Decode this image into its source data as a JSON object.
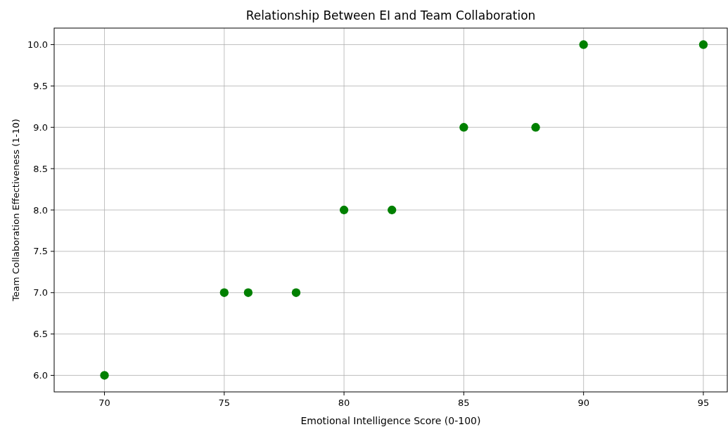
{
  "chart_data": {
    "type": "scatter",
    "title": "Relationship Between EI and Team Collaboration",
    "xlabel": "Emotional Intelligence Score (0-100)",
    "ylabel": "Team Collaboration Effectiveness (1-10)",
    "x": [
      70,
      75,
      76,
      78,
      80,
      82,
      85,
      88,
      90,
      95
    ],
    "series": [
      {
        "color": "#008000",
        "values": [
          6,
          7,
          7,
          7,
          8,
          8,
          9,
          9,
          10,
          10
        ]
      }
    ],
    "xlim": [
      67.9,
      96.0
    ],
    "ylim": [
      5.8,
      10.2
    ],
    "xticks": [
      70,
      75,
      80,
      85,
      90,
      95
    ],
    "yticks": [
      {
        "value": 6,
        "label": "6.0"
      },
      {
        "value": 6.5,
        "label": "6.5"
      },
      {
        "value": 7,
        "label": "7.0"
      },
      {
        "value": 7.5,
        "label": "7.5"
      },
      {
        "value": 8,
        "label": "8.0"
      },
      {
        "value": 8.5,
        "label": "8.5"
      },
      {
        "value": 9,
        "label": "9.0"
      },
      {
        "value": 9.5,
        "label": "9.5"
      },
      {
        "value": 10,
        "label": "10.0"
      }
    ],
    "grid": true,
    "marker": "circle"
  }
}
